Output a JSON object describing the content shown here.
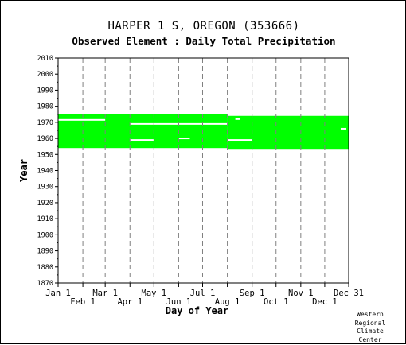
{
  "chart_data": {
    "type": "timeline",
    "title": "HARPER 1 S, OREGON   (353666)",
    "subtitle": "Observed Element : Daily Total Precipitation",
    "xlabel": "Day of Year",
    "ylabel": "Year",
    "ylim": [
      1870,
      2010
    ],
    "y_ticks": [
      1870,
      1880,
      1890,
      1900,
      1910,
      1920,
      1930,
      1940,
      1950,
      1960,
      1970,
      1980,
      1990,
      2000,
      2010
    ],
    "x_tick_labels_upper": [
      "Jan 1",
      "Mar 1",
      "May 1",
      "Jul 1",
      "Sep 1",
      "Nov 1",
      "Dec 31"
    ],
    "x_tick_labels_lower": [
      "Feb 1",
      "Apr 1",
      "Jun 1",
      "Aug 1",
      "Oct 1",
      "Dec 1"
    ],
    "x_tick_days": [
      1,
      32,
      60,
      91,
      121,
      152,
      182,
      213,
      244,
      274,
      305,
      335,
      365
    ],
    "grid": true,
    "series": [
      {
        "color": "#00ff00",
        "coverage_segments": [
          {
            "x_start_day": 1,
            "x_end_day": 213,
            "y_start_year": 1954,
            "y_end_year": 1975
          },
          {
            "x_start_day": 213,
            "x_end_day": 365,
            "y_start_year": 1953,
            "y_end_year": 1974
          }
        ],
        "gaps": [
          {
            "x_start_day": 1,
            "x_end_day": 60,
            "year": 1971.5
          },
          {
            "x_start_day": 91,
            "x_end_day": 213,
            "year": 1969
          },
          {
            "x_start_day": 91,
            "x_end_day": 121,
            "year": 1959
          },
          {
            "x_start_day": 152,
            "x_end_day": 166,
            "year": 1960
          },
          {
            "x_start_day": 213,
            "x_end_day": 244,
            "year": 1959
          },
          {
            "x_start_day": 223,
            "x_end_day": 229,
            "year": 1972
          },
          {
            "x_start_day": 355,
            "x_end_day": 362,
            "year": 1966
          }
        ]
      }
    ]
  },
  "credit": [
    "Western",
    "Regional",
    "Climate",
    "Center"
  ]
}
